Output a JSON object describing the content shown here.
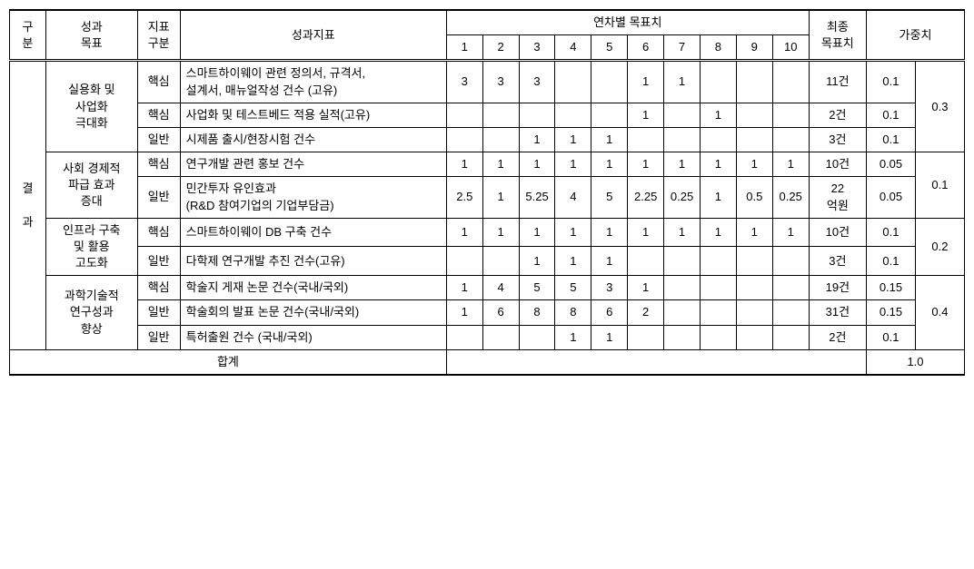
{
  "headers": {
    "col_gubun": "구\n분",
    "col_goal": "성과\n목표",
    "col_indicator_type": "지표\n구분",
    "col_indicator": "성과지표",
    "col_yearly": "연차별 목표치",
    "col_final": "최종\n목표치",
    "col_weight": "가중치",
    "years": [
      "1",
      "2",
      "3",
      "4",
      "5",
      "6",
      "7",
      "8",
      "9",
      "10"
    ]
  },
  "section_label": "결\n\n과",
  "groups": [
    {
      "goal": "실용화 및\n사업화\n극대화",
      "group_weight": "0.3",
      "rows": [
        {
          "type": "핵심",
          "indicator": "스마트하이웨이 관련 정의서, 규격서,\n설계서, 매뉴얼작성 건수 (고유)",
          "y": [
            "3",
            "3",
            "3",
            "",
            "",
            "1",
            "1",
            "",
            "",
            ""
          ],
          "final": "11건",
          "weight": "0.1"
        },
        {
          "type": "핵심",
          "indicator": "사업화 및 테스트베드 적용 실적(고유)",
          "y": [
            "",
            "",
            "",
            "",
            "",
            "1",
            "",
            "1",
            "",
            ""
          ],
          "final": "2건",
          "weight": "0.1"
        },
        {
          "type": "일반",
          "indicator": "시제품 출시/현장시험 건수",
          "y": [
            "",
            "",
            "1",
            "1",
            "1",
            "",
            "",
            "",
            "",
            ""
          ],
          "final": "3건",
          "weight": "0.1"
        }
      ]
    },
    {
      "goal": "사회 경제적\n파급 효과\n증대",
      "group_weight": "0.1",
      "rows": [
        {
          "type": "핵심",
          "indicator": "연구개발 관련 홍보 건수",
          "y": [
            "1",
            "1",
            "1",
            "1",
            "1",
            "1",
            "1",
            "1",
            "1",
            "1"
          ],
          "final": "10건",
          "weight": "0.05"
        },
        {
          "type": "일반",
          "indicator": "민간투자 유인효과\n(R&D 참여기업의 기업부담금)",
          "y": [
            "2.5",
            "1",
            "5.25",
            "4",
            "5",
            "2.25",
            "0.25",
            "1",
            "0.5",
            "0.25"
          ],
          "final": "22\n억원",
          "weight": "0.05"
        }
      ]
    },
    {
      "goal": "인프라 구축\n및 활용\n고도화",
      "group_weight": "0.2",
      "rows": [
        {
          "type": "핵심",
          "indicator": "스마트하이웨이 DB 구축 건수",
          "y": [
            "1",
            "1",
            "1",
            "1",
            "1",
            "1",
            "1",
            "1",
            "1",
            "1"
          ],
          "final": "10건",
          "weight": "0.1"
        },
        {
          "type": "일반",
          "indicator": "다학제 연구개발 추진 건수(고유)",
          "y": [
            "",
            "",
            "1",
            "1",
            "1",
            "",
            "",
            "",
            "",
            ""
          ],
          "final": "3건",
          "weight": "0.1"
        }
      ]
    },
    {
      "goal": "과학기술적\n연구성과\n향상",
      "group_weight": "0.4",
      "rows": [
        {
          "type": "핵심",
          "indicator": "학술지 게재 논문 건수(국내/국외)",
          "y": [
            "1",
            "4",
            "5",
            "5",
            "3",
            "1",
            "",
            "",
            "",
            ""
          ],
          "final": "19건",
          "weight": "0.15"
        },
        {
          "type": "일반",
          "indicator": "학술회의 발표 논문 건수(국내/국외)",
          "y": [
            "1",
            "6",
            "8",
            "8",
            "6",
            "2",
            "",
            "",
            "",
            ""
          ],
          "final": "31건",
          "weight": "0.15"
        },
        {
          "type": "일반",
          "indicator": "특허출원 건수 (국내/국외)",
          "y": [
            "",
            "",
            "",
            "1",
            "1",
            "",
            "",
            "",
            "",
            ""
          ],
          "final": "2건",
          "weight": "0.1"
        }
      ]
    }
  ],
  "footer": {
    "label": "합계",
    "value": "1.0"
  },
  "colwidths": {
    "gubun": 34,
    "goal": 86,
    "type": 40,
    "indicator": 250,
    "year": 34,
    "final": 54,
    "weight1": 46,
    "weight2": 46
  }
}
